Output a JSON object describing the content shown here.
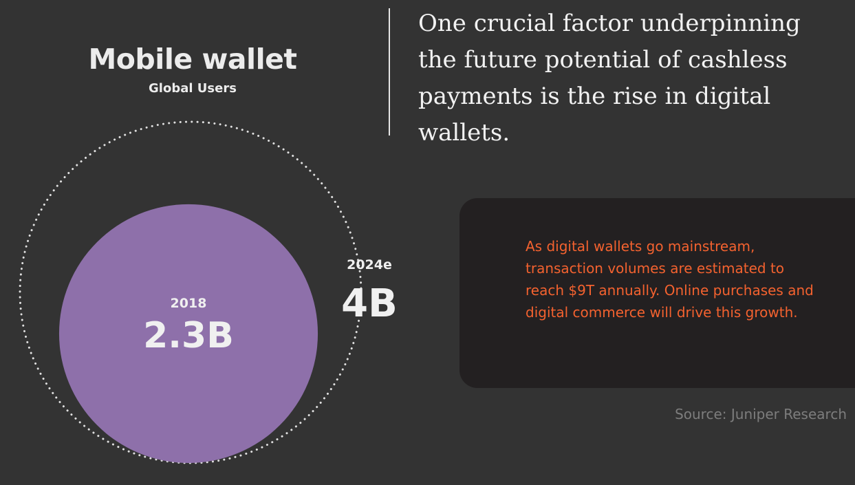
{
  "colors": {
    "background": "#333333",
    "bubble_2018": "#8e70aa",
    "dotted_ring": "#e0e0e0",
    "callout_bg": "#232021",
    "callout_text": "#f4622f",
    "source_text": "#7d7d7d"
  },
  "chart_data": {
    "type": "bubble",
    "title": "Mobile wallet",
    "subtitle": "Global Users",
    "unit": "B",
    "points": [
      {
        "category": "2018",
        "value": 2.3,
        "label": "2.3B",
        "style": "filled"
      },
      {
        "category": "2024e",
        "value": 4,
        "label": "4B",
        "style": "dotted-outline"
      }
    ]
  },
  "quote": "One crucial factor underpinning the future potential of cashless payments is the rise in digital wallets.",
  "callout": "As digital wallets go mainstream, transaction volumes are estimated to reach $9T annually. Online purchases and digital commerce will drive this growth.",
  "source": "Source: Juniper Research"
}
